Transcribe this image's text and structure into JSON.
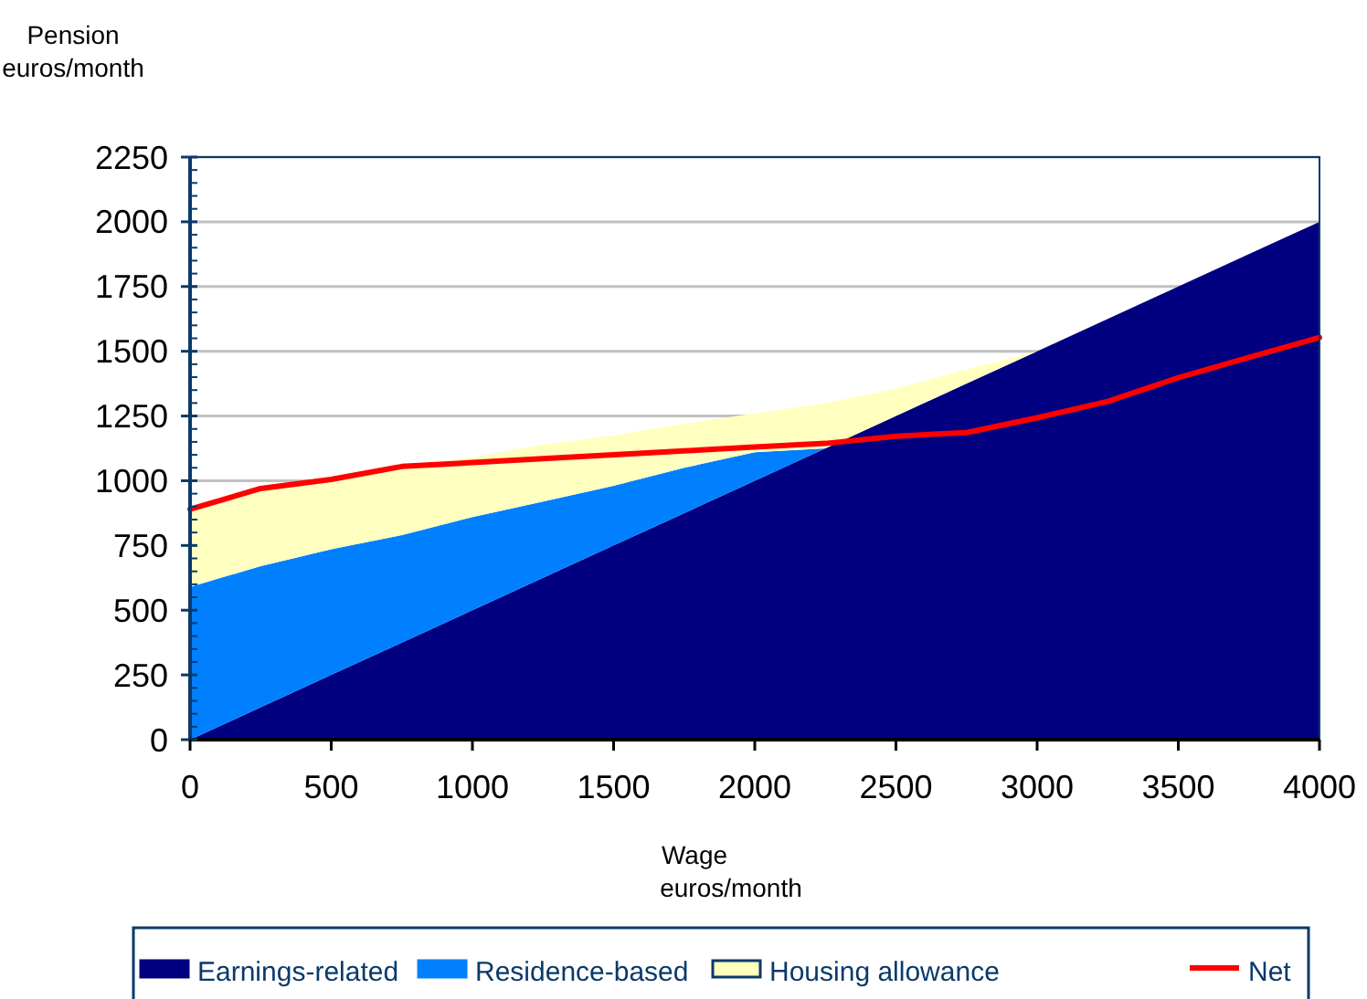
{
  "chart_data": {
    "type": "area",
    "stacked": true,
    "xlabel": "Wage\neuros/month",
    "ylabel": "Pension\neuros/month",
    "x": [
      0,
      250,
      500,
      750,
      1000,
      1250,
      1500,
      1750,
      2000,
      2250,
      2500,
      2750,
      3000,
      3250,
      3500,
      3750,
      4000
    ],
    "series": [
      {
        "name": "Earnings-related",
        "color": "#000080",
        "values": [
          0,
          125,
          250,
          375,
          500,
          625,
          750,
          875,
          1000,
          1125,
          1250,
          1375,
          1500,
          1625,
          1750,
          1875,
          2000
        ]
      },
      {
        "name": "Residence-based",
        "color": "#0080ff",
        "values": [
          590,
          545,
          485,
          415,
          360,
          295,
          230,
          175,
          110,
          0,
          null,
          null,
          null,
          null,
          null,
          null,
          null
        ]
      },
      {
        "name": "Housing allowance",
        "color": "#ffffc0",
        "values": [
          290,
          300,
          275,
          270,
          230,
          220,
          195,
          170,
          150,
          175,
          105,
          55,
          0,
          null,
          null,
          null,
          null
        ]
      },
      {
        "name": "Net",
        "type": "line",
        "color": "#ff0000",
        "values": [
          890,
          970,
          1005,
          1055,
          1070,
          1085,
          1100,
          1115,
          1130,
          1144,
          1172,
          1186,
          1243,
          1306,
          1398,
          1476,
          1553
        ]
      }
    ],
    "xlim": [
      0,
      4000
    ],
    "xticks": [
      0,
      500,
      1000,
      1500,
      2000,
      2500,
      3000,
      3500,
      4000
    ],
    "ylim": [
      0,
      2250
    ],
    "yticks": [
      0,
      250,
      500,
      750,
      1000,
      1250,
      1500,
      1750,
      2000,
      2250
    ],
    "grid": "y",
    "legend": "bottom"
  }
}
